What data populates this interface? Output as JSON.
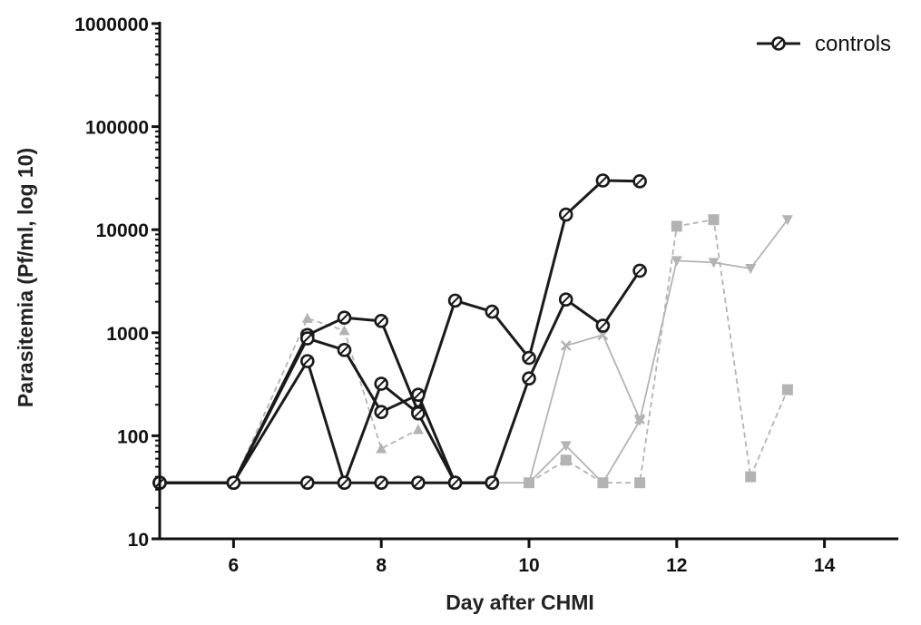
{
  "chart_data": {
    "type": "line",
    "title": "",
    "xlabel": "Day after CHMI",
    "ylabel": "Parasitemia (Pf/ml, log 10)",
    "xlim": [
      5,
      15
    ],
    "ylim": [
      10,
      1000000
    ],
    "yscale": "log",
    "xticks": [
      6,
      8,
      10,
      12,
      14
    ],
    "xtick_labels": [
      "6",
      "8",
      "10",
      "12",
      "14"
    ],
    "yticks": [
      10,
      100,
      1000,
      10000,
      100000,
      1000000
    ],
    "ytick_labels": [
      "10",
      "100",
      "1000",
      "10000",
      "100000",
      "1000000"
    ],
    "grid": false,
    "legend": {
      "position": "top-right",
      "entries": [
        {
          "label": "controls",
          "marker": "open-circle",
          "color": "#1a1a1a"
        }
      ]
    },
    "series": [
      {
        "group": "controls",
        "color": "#1a1a1a",
        "marker": "open-circle",
        "dash": "solid",
        "points": [
          [
            5,
            35
          ],
          [
            6,
            35
          ],
          [
            7,
            950
          ],
          [
            7.5,
            1400
          ],
          [
            8,
            1300
          ],
          [
            8.5,
            170
          ],
          [
            9,
            2050
          ],
          [
            9.5,
            1600
          ],
          [
            10,
            570
          ],
          [
            10.5,
            14000
          ],
          [
            11,
            30000
          ],
          [
            11.5,
            29500
          ]
        ]
      },
      {
        "group": "controls",
        "color": "#1a1a1a",
        "marker": "open-circle",
        "dash": "solid",
        "points": [
          [
            5,
            35
          ],
          [
            6,
            35
          ],
          [
            7,
            880
          ],
          [
            7.5,
            680
          ],
          [
            8,
            170
          ],
          [
            8.5,
            250
          ],
          [
            9,
            35
          ],
          [
            9.5,
            35
          ],
          [
            10,
            360
          ],
          [
            10.5,
            2100
          ],
          [
            11,
            1170
          ],
          [
            11.5,
            4000
          ]
        ]
      },
      {
        "group": "controls",
        "color": "#1a1a1a",
        "marker": "open-circle",
        "dash": "solid",
        "points": [
          [
            5,
            35
          ],
          [
            6,
            35
          ],
          [
            7,
            530
          ],
          [
            7.5,
            35
          ],
          [
            8,
            320
          ],
          [
            8.5,
            165
          ],
          [
            9,
            35
          ],
          [
            9.5,
            35
          ]
        ]
      },
      {
        "group": "controls",
        "color": "#1a1a1a",
        "marker": "open-circle",
        "dash": "solid",
        "points": [
          [
            5,
            35
          ],
          [
            6,
            35
          ],
          [
            7,
            35
          ],
          [
            7.5,
            35
          ],
          [
            8,
            35
          ],
          [
            8.5,
            35
          ],
          [
            9,
            35
          ],
          [
            9.5,
            35
          ]
        ]
      },
      {
        "color": "#b3b3b3",
        "marker": "triangle-up",
        "dash": "dashed",
        "points": [
          [
            6,
            35
          ],
          [
            7,
            1380
          ],
          [
            7.5,
            1050
          ],
          [
            8,
            75
          ],
          [
            8.5,
            115
          ]
        ]
      },
      {
        "color": "#b3b3b3",
        "marker": "cross",
        "dash": "solid",
        "points": [
          [
            9.5,
            35
          ],
          [
            10,
            35
          ],
          [
            10.5,
            750
          ],
          [
            11,
            950
          ],
          [
            11.5,
            145
          ]
        ]
      },
      {
        "color": "#b3b3b3",
        "marker": "triangle-down",
        "dash": "solid",
        "points": [
          [
            10,
            35
          ],
          [
            10.5,
            80
          ],
          [
            11,
            35
          ],
          [
            11.5,
            140
          ],
          [
            12,
            5000
          ],
          [
            12.5,
            4800
          ],
          [
            13,
            4200
          ],
          [
            13.5,
            12500
          ]
        ]
      },
      {
        "color": "#b3b3b3",
        "marker": "square",
        "dash": "dashed",
        "points": [
          [
            10,
            35
          ],
          [
            10.5,
            58
          ],
          [
            11,
            35
          ],
          [
            11.5,
            35
          ],
          [
            12,
            10800
          ],
          [
            12.5,
            12500
          ],
          [
            13,
            40
          ],
          [
            13.5,
            280
          ]
        ]
      }
    ]
  }
}
